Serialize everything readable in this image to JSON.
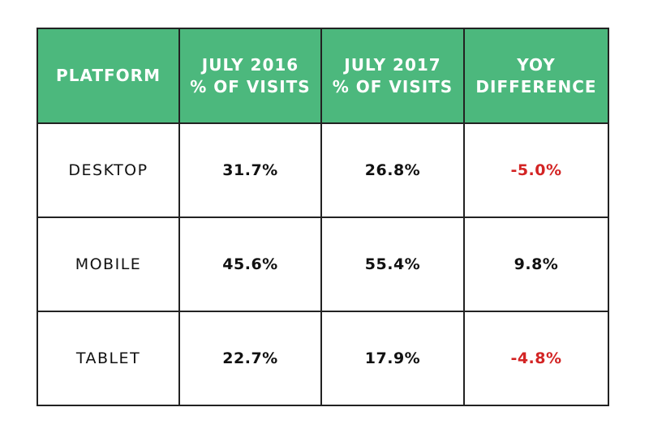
{
  "chart_data": {
    "type": "table",
    "columns": [
      "PLATFORM",
      "JULY 2016\n% OF VISITS",
      "JULY 2017\n% OF VISITS",
      "YOY\nDIFFERENCE"
    ],
    "rows": [
      {
        "platform": "DESKTOP",
        "july_2016": "31.7%",
        "july_2017": "26.8%",
        "yoy_difference": "-5.0%",
        "yoy_negative": true
      },
      {
        "platform": "MOBILE",
        "july_2016": "45.6%",
        "july_2017": "55.4%",
        "yoy_difference": "9.8%",
        "yoy_negative": false
      },
      {
        "platform": "TABLET",
        "july_2016": "22.7%",
        "july_2017": "17.9%",
        "yoy_difference": "-4.8%",
        "yoy_negative": true
      }
    ]
  },
  "colors": {
    "header_background": "#4cb87d",
    "header_text": "#ffffff",
    "negative_text": "#d32424",
    "border": "#222222"
  }
}
